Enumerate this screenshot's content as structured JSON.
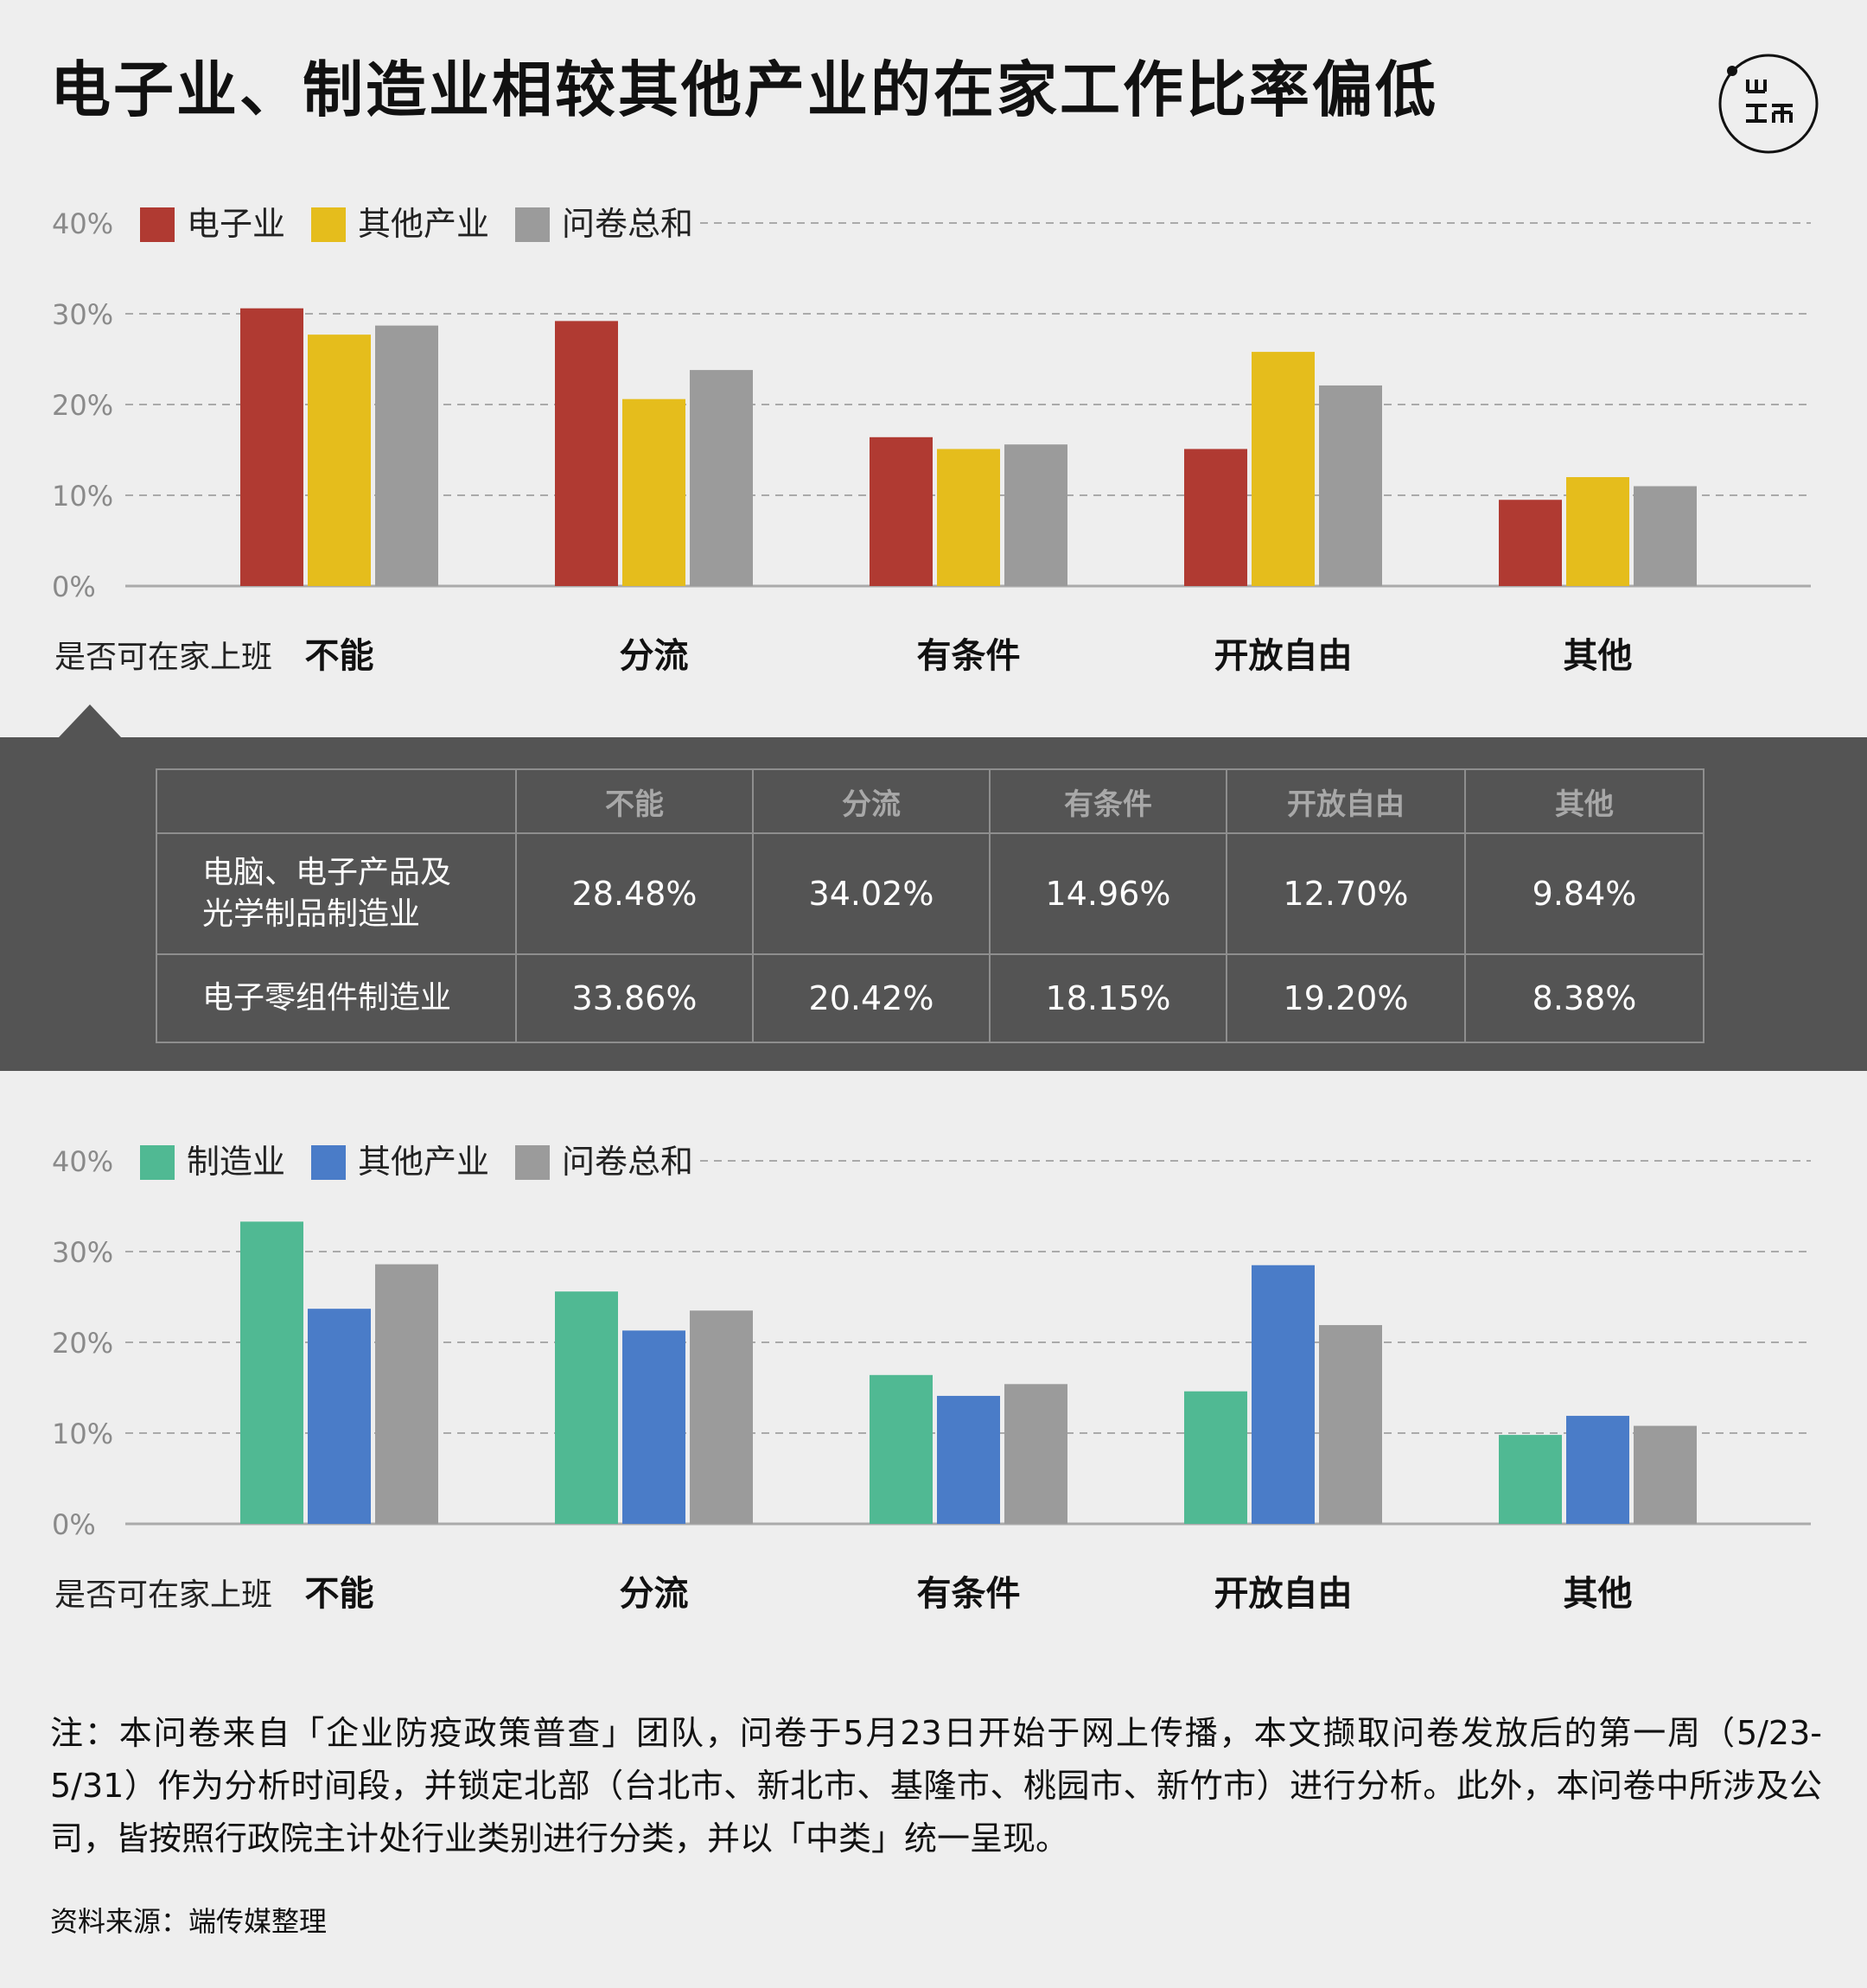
{
  "title": "电子业、制造业相较其他产业的在家工作比率偏低",
  "chart_data": [
    {
      "type": "bar",
      "xlabel": "是否可在家上班",
      "categories": [
        "不能",
        "分流",
        "有条件",
        "开放自由",
        "其他"
      ],
      "yticks": [
        "0%",
        "10%",
        "20%",
        "30%",
        "40%"
      ],
      "ylim": [
        0,
        40
      ],
      "grid": true,
      "legend": "top-left",
      "series": [
        {
          "name": "电子业",
          "color": "#b03a32",
          "values": [
            30.6,
            29.2,
            16.4,
            15.1,
            9.5
          ]
        },
        {
          "name": "其他产业",
          "color": "#e5bd1c",
          "values": [
            27.7,
            20.6,
            15.1,
            25.8,
            12.0
          ]
        },
        {
          "name": "问卷总和",
          "color": "#9b9b9b",
          "values": [
            28.7,
            23.8,
            15.6,
            22.1,
            11.0
          ]
        }
      ]
    },
    {
      "type": "bar",
      "xlabel": "是否可在家上班",
      "categories": [
        "不能",
        "分流",
        "有条件",
        "开放自由",
        "其他"
      ],
      "yticks": [
        "0%",
        "10%",
        "20%",
        "30%",
        "40%"
      ],
      "ylim": [
        0,
        40
      ],
      "grid": true,
      "legend": "top-left",
      "series": [
        {
          "name": "制造业",
          "color": "#50b993",
          "values": [
            33.3,
            25.6,
            16.4,
            14.6,
            9.8
          ]
        },
        {
          "name": "其他产业",
          "color": "#4a7cc8",
          "values": [
            23.7,
            21.3,
            14.1,
            28.5,
            11.9
          ]
        },
        {
          "name": "问卷总和",
          "color": "#9b9b9b",
          "values": [
            28.6,
            23.5,
            15.4,
            21.9,
            10.8
          ]
        }
      ]
    }
  ],
  "table": {
    "headers": [
      "",
      "不能",
      "分流",
      "有条件",
      "开放自由",
      "其他"
    ],
    "rows": [
      {
        "label_line1": "电脑、电子产品及",
        "label_line2": "光学制品制造业",
        "values": [
          "28.48%",
          "34.02%",
          "14.96%",
          "12.70%",
          "9.84%"
        ]
      },
      {
        "label": "电子零组件制造业",
        "values": [
          "33.86%",
          "20.42%",
          "18.15%",
          "19.20%",
          "8.38%"
        ]
      }
    ]
  },
  "note": "注：本问卷来自「企业防疫政策普查」团队，问卷于5月23日开始于网上传播，本文撷取问卷发放后的第一周（5/23-5/31）作为分析时间段，并锁定北部（台北市、新北市、基隆市、桃园市、新竹市）进行分析。此外，本问卷中所涉及公司，皆按照行政院主计处行业类别进行分类，并以「中类」统一呈现。",
  "source": "资料来源：端传媒整理",
  "logo_icon": "initium-logo-icon"
}
